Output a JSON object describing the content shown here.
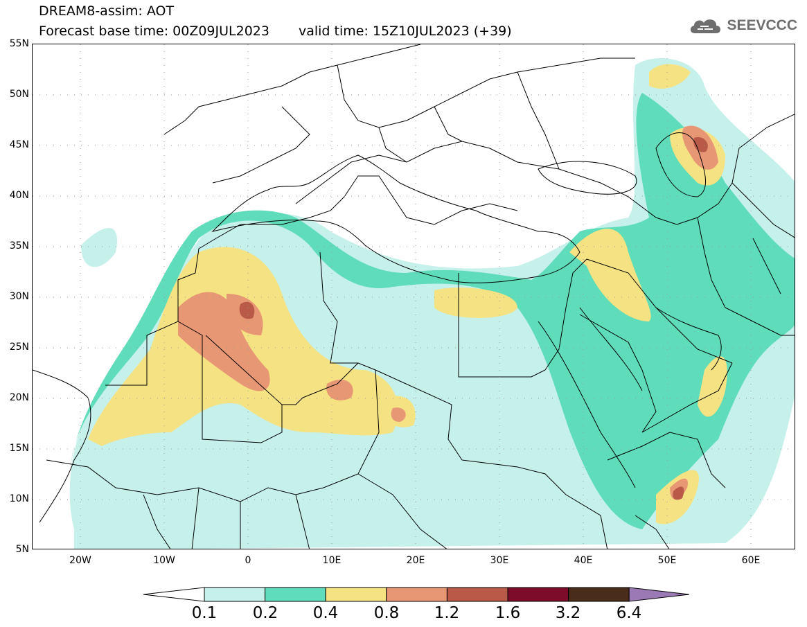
{
  "header": {
    "line1": "DREAM8-assim: AOT",
    "base_time": "Forecast base time: 00Z09JUL2023",
    "valid_time": "valid time: 15Z10JUL2023 (+39)"
  },
  "logo": {
    "text": "SEEVCCC",
    "icon": "cloud-icon",
    "color": "#6e6e6e"
  },
  "axes": {
    "lat_ticks": [
      "55N",
      "50N",
      "45N",
      "40N",
      "35N",
      "30N",
      "25N",
      "20N",
      "15N",
      "10N",
      "5N"
    ],
    "lon_ticks": [
      "20W",
      "10W",
      "0",
      "10E",
      "20E",
      "30E",
      "40E",
      "50E",
      "60E"
    ]
  },
  "legend": {
    "thresholds": [
      "0.1",
      "0.2",
      "0.4",
      "0.8",
      "1.2",
      "1.6",
      "3.2",
      "6.4"
    ],
    "colors": [
      "#ffffff",
      "#c6f0ea",
      "#5fdcb9",
      "#f5e283",
      "#e89774",
      "#b95a48",
      "#7d0b2a",
      "#4a2c1a",
      "#9a79b5"
    ]
  }
}
